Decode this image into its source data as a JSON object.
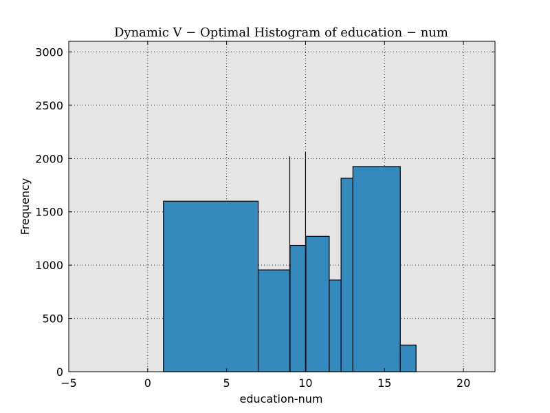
{
  "chart_data": {
    "type": "bar",
    "title": "Dynamic V − Optimal Histogram of education − num",
    "xlabel": "education-num",
    "ylabel": "Frequency",
    "xlim": [
      -5,
      22
    ],
    "ylim": [
      0,
      3100
    ],
    "xticks": [
      -5,
      0,
      5,
      10,
      15,
      20
    ],
    "xtick_labels": [
      "−5",
      "0",
      "5",
      "10",
      "15",
      "20"
    ],
    "yticks": [
      0,
      500,
      1000,
      1500,
      2000,
      2500,
      3000
    ],
    "ytick_labels": [
      "0",
      "500",
      "1000",
      "1500",
      "2000",
      "2500",
      "3000"
    ],
    "grid": true,
    "bar_color": "#348ABD",
    "background_color": "#E5E5E5",
    "bins": [
      {
        "x0": 1.0,
        "x1": 7.0,
        "value": 1600
      },
      {
        "x0": 7.0,
        "x1": 9.0,
        "value": 955
      },
      {
        "x0": 9.0,
        "x1": 9.02,
        "value": 2020
      },
      {
        "x0": 9.02,
        "x1": 10.0,
        "value": 1185
      },
      {
        "x0": 10.0,
        "x1": 10.02,
        "value": 2060
      },
      {
        "x0": 10.02,
        "x1": 11.5,
        "value": 1270
      },
      {
        "x0": 11.5,
        "x1": 12.25,
        "value": 860
      },
      {
        "x0": 12.25,
        "x1": 13.0,
        "value": 1815
      },
      {
        "x0": 13.0,
        "x1": 16.0,
        "value": 1925
      },
      {
        "x0": 16.0,
        "x1": 17.0,
        "value": 250
      }
    ]
  }
}
